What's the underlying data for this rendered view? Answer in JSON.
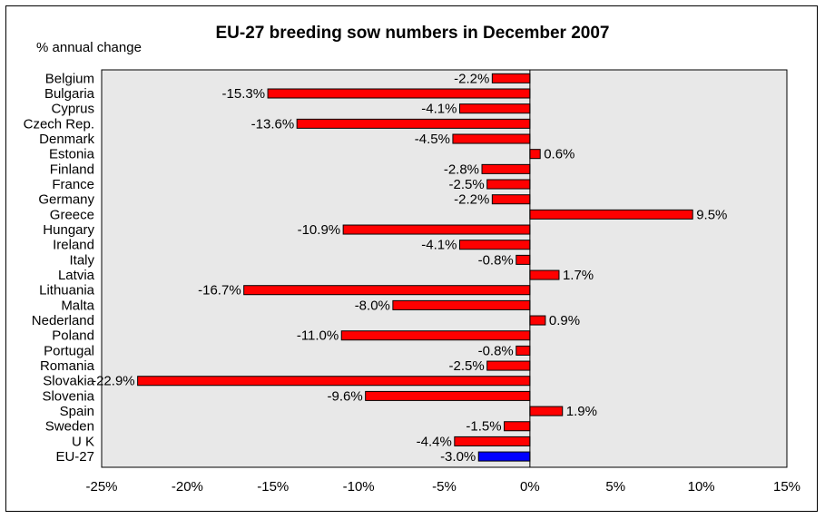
{
  "chart_data": {
    "type": "bar",
    "orientation": "horizontal",
    "title": "EU-27 breeding sow numbers in December 2007",
    "ylabel": "% annual change",
    "categories": [
      "Belgium",
      "Bulgaria",
      "Cyprus",
      "Czech Rep.",
      "Denmark",
      "Estonia",
      "Finland",
      "France",
      "Germany",
      "Greece",
      "Hungary",
      "Ireland",
      "Italy",
      "Latvia",
      "Lithuania",
      "Malta",
      "Nederland",
      "Poland",
      "Portugal",
      "Romania",
      "Slovakia",
      "Slovenia",
      "Spain",
      "Sweden",
      "U K",
      "EU-27"
    ],
    "values": [
      -2.2,
      -15.3,
      -4.1,
      -13.6,
      -4.5,
      0.6,
      -2.8,
      -2.5,
      -2.2,
      9.5,
      -10.9,
      -4.1,
      -0.8,
      1.7,
      -16.7,
      -8.0,
      0.9,
      -11.0,
      -0.8,
      -2.5,
      -22.9,
      -9.6,
      1.9,
      -1.5,
      -4.4,
      -3.0
    ],
    "data_labels": [
      "-2.2%",
      "-15.3%",
      "-4.1%",
      "-13.6%",
      "-4.5%",
      "0.6%",
      "-2.8%",
      "-2.5%",
      "-2.2%",
      "9.5%",
      "-10.9%",
      "-4.1%",
      "-0.8%",
      "1.7%",
      "-16.7%",
      "-8.0%",
      "0.9%",
      "-11.0%",
      "-0.8%",
      "-2.5%",
      "-22.9%",
      "-9.6%",
      "1.9%",
      "-1.5%",
      "-4.4%",
      "-3.0%"
    ],
    "xlim": [
      -25,
      15
    ],
    "xticks": [
      -25,
      -20,
      -15,
      -10,
      -5,
      0,
      5,
      10,
      15
    ],
    "xtick_labels": [
      "-25%",
      "-20%",
      "-15%",
      "-10%",
      "-5%",
      "0%",
      "5%",
      "10%",
      "15%"
    ],
    "grid": false,
    "legend": "none",
    "colors": {
      "bar": "#ff0000",
      "highlight": "#0000ff",
      "plot_bg": "#e8e8e8",
      "border": "#000000"
    },
    "highlight_category": "EU-27"
  }
}
